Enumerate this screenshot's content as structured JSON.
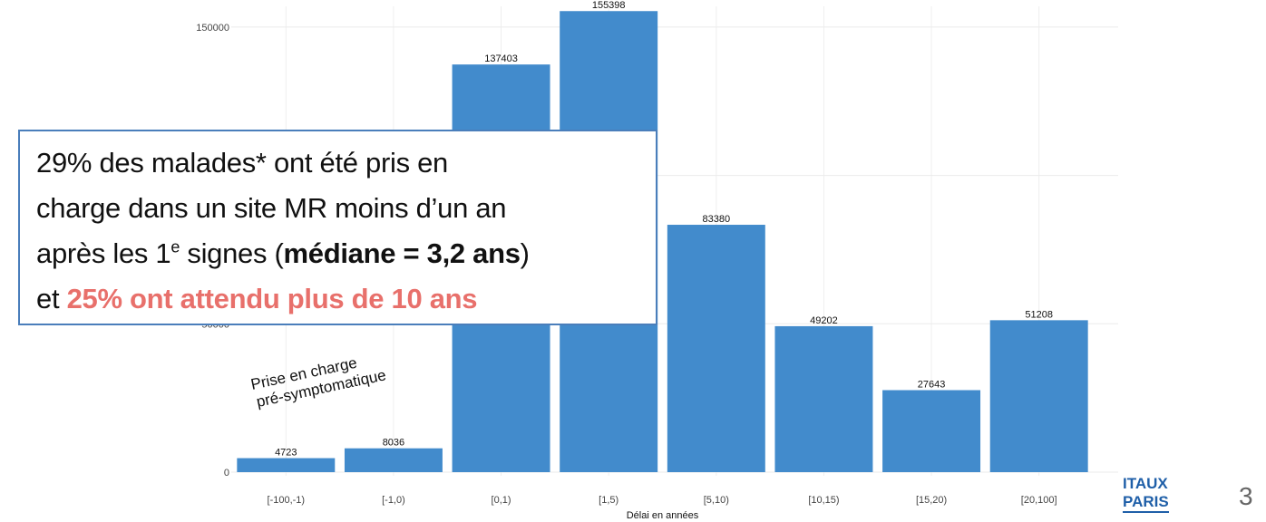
{
  "chart_data": {
    "type": "bar",
    "categories": [
      "[-100,-1)",
      "[-1,0)",
      "[0,1)",
      "[1,5)",
      "[5,10)",
      "[10,15)",
      "[15,20)",
      "[20,100]"
    ],
    "values": [
      4723,
      8036,
      137403,
      155398,
      83380,
      49202,
      27643,
      51208
    ],
    "color": "#428bcc",
    "ylim": [
      0,
      157000
    ],
    "yticks": [
      0,
      50000,
      100000,
      150000
    ],
    "grid": true,
    "xlabel": "Délai en années",
    "annotation": [
      "Prise en charge",
      "pré-symptomatique"
    ]
  },
  "callout": {
    "line1": "29% des malades* ont été pris en",
    "line2": "charge dans un site MR moins d’un an",
    "line3_start": "après les 1",
    "line3_sup": "e",
    "line3_mid": " signes (",
    "line3_bold": "médiane = 3,2 ans",
    "line3_end": ")",
    "line4_start": "et ",
    "line4_highlight": "25% ont attendu plus de 10 ans"
  },
  "logo": [
    "ITAUX",
    "PARIS"
  ],
  "page_number": "3"
}
